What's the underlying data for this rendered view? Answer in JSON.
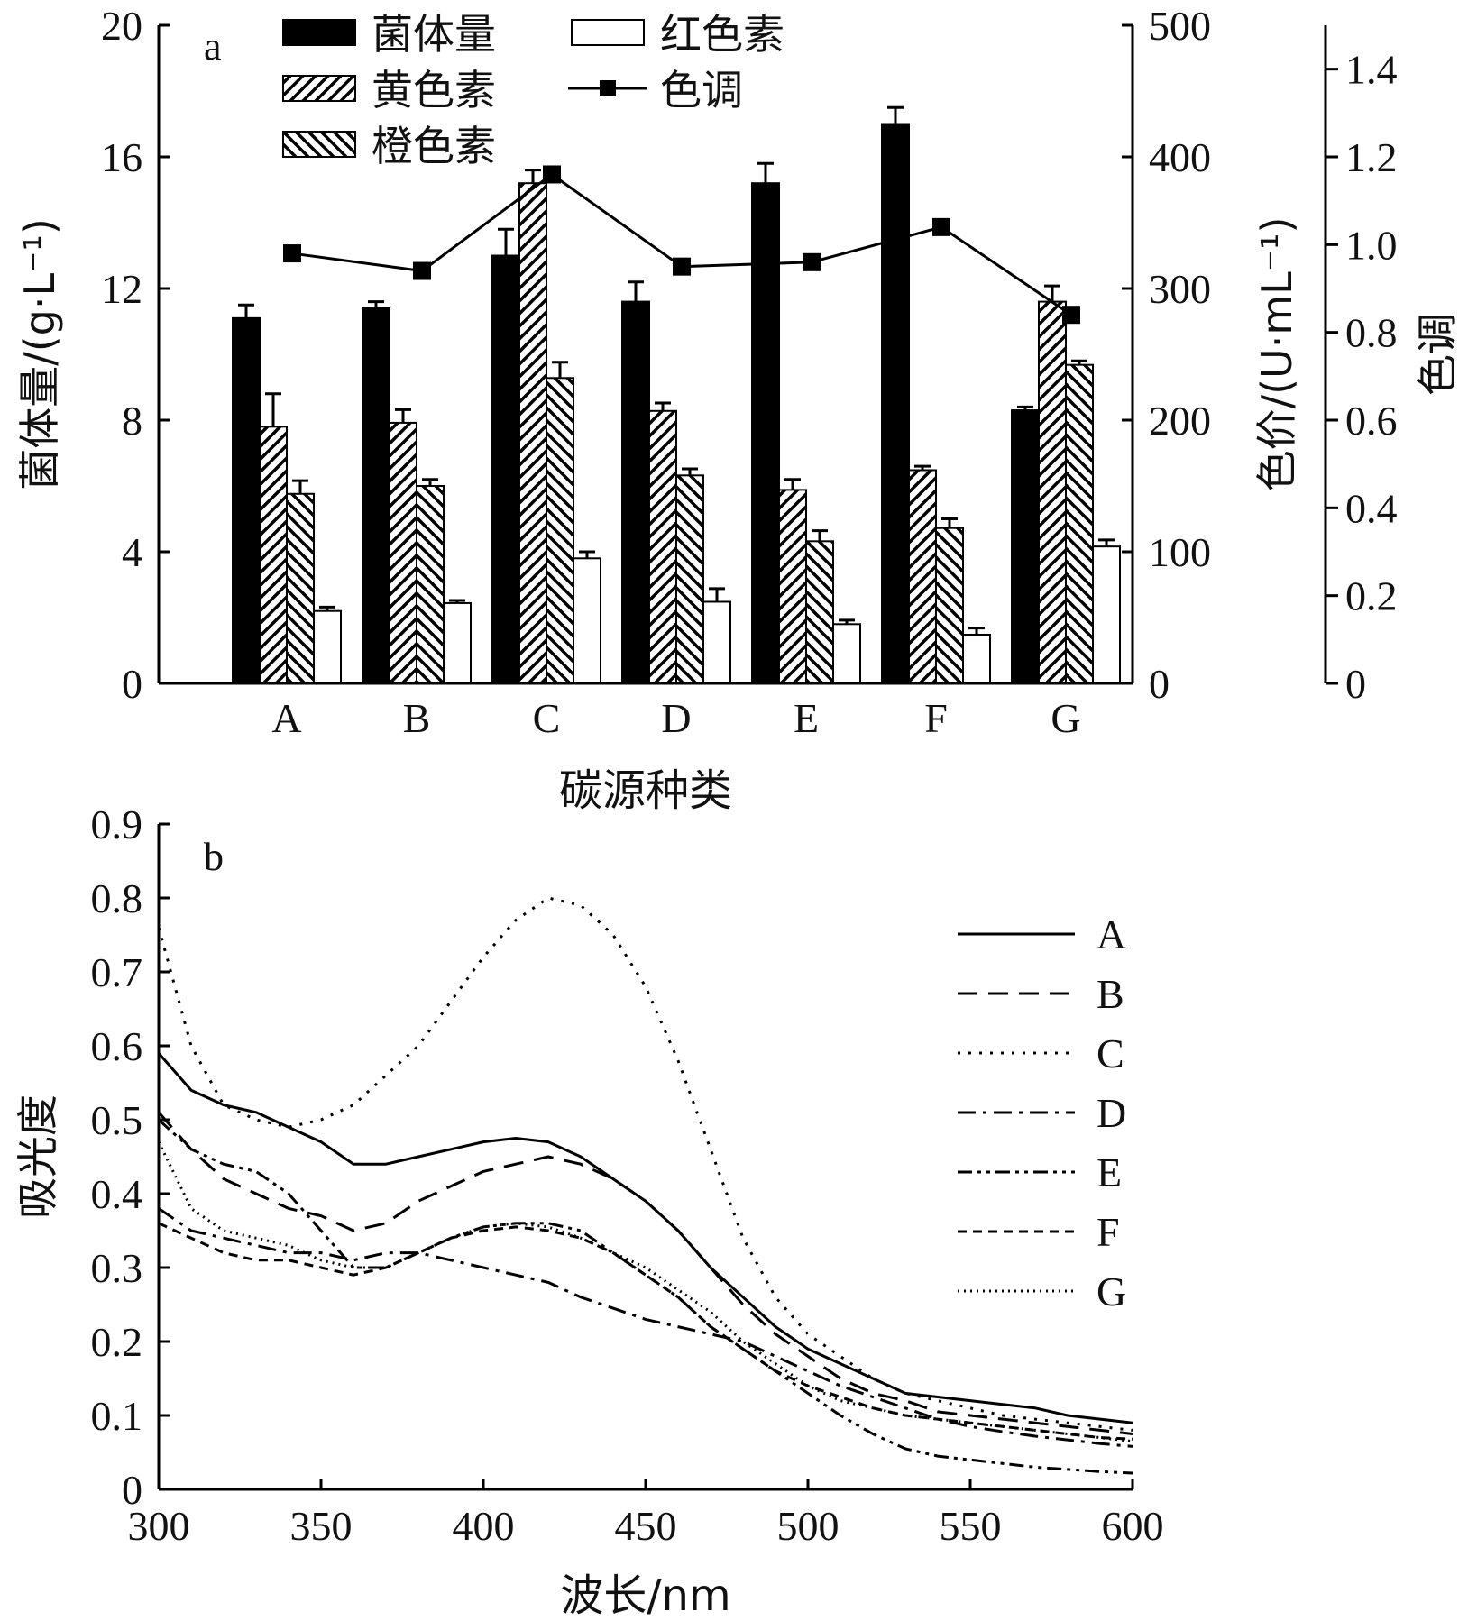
{
  "chart_data": [
    {
      "type": "bar",
      "panel_label": "a",
      "categories": [
        "A",
        "B",
        "C",
        "D",
        "E",
        "F",
        "G"
      ],
      "xlabel": "碳源种类",
      "ylabel_left": "菌体量/(g·L⁻¹)",
      "ylabel_right_1": "色价/(U·mL⁻¹)",
      "ylabel_right_2": "色调",
      "ylim_left": [
        0,
        20
      ],
      "ylim_right_1": [
        0,
        500
      ],
      "ylim_right_2": [
        0,
        1.5
      ],
      "yticks_left": [
        "0",
        "4",
        "8",
        "12",
        "16",
        "20"
      ],
      "yticks_right_1": [
        "0",
        "100",
        "200",
        "300",
        "400",
        "500"
      ],
      "yticks_right_2": [
        "0",
        "0.2",
        "0.4",
        "0.6",
        "0.8",
        "1.0",
        "1.2",
        "1.4"
      ],
      "legend": {
        "placement": "top",
        "entries": [
          "菌体量",
          "黄色素",
          "橙色素",
          "红色素",
          "色调"
        ]
      },
      "series": [
        {
          "name": "菌体量",
          "axis": "left",
          "style": "solid-black-bar",
          "values": [
            11.1,
            11.4,
            13.0,
            11.6,
            15.2,
            17.0,
            8.3
          ],
          "errors": [
            0.4,
            0.2,
            0.8,
            0.6,
            0.6,
            0.5,
            0.1
          ]
        },
        {
          "name": "黄色素",
          "axis": "right_1",
          "style": "hatch-forward-bar",
          "values": [
            195,
            198,
            380,
            207,
            147,
            162,
            290
          ],
          "errors": [
            25,
            10,
            10,
            6,
            8,
            3,
            12
          ]
        },
        {
          "name": "橙色素",
          "axis": "right_1",
          "style": "hatch-backward-bar",
          "values": [
            144,
            150,
            232,
            158,
            108,
            118,
            242
          ],
          "errors": [
            10,
            5,
            12,
            5,
            8,
            7,
            3
          ]
        },
        {
          "name": "红色素",
          "axis": "right_1",
          "style": "white-bar",
          "values": [
            55,
            61,
            95,
            62,
            45,
            37,
            104
          ],
          "errors": [
            3,
            2,
            5,
            10,
            3,
            5,
            5
          ]
        },
        {
          "name": "色调",
          "axis": "right_2",
          "style": "line-square-marker",
          "values": [
            0.98,
            0.94,
            1.16,
            0.95,
            0.96,
            1.04,
            0.84
          ]
        }
      ]
    },
    {
      "type": "line",
      "panel_label": "b",
      "xlabel": "波长/nm",
      "ylabel": "吸光度",
      "xlim": [
        300,
        600
      ],
      "ylim": [
        0,
        0.9
      ],
      "xticks": [
        "300",
        "350",
        "400",
        "450",
        "500",
        "550",
        "600"
      ],
      "yticks": [
        "0",
        "0.1",
        "0.2",
        "0.3",
        "0.4",
        "0.5",
        "0.6",
        "0.7",
        "0.8",
        "0.9"
      ],
      "legend": {
        "placement": "right",
        "entries": [
          "A",
          "B",
          "C",
          "D",
          "E",
          "F",
          "G"
        ]
      },
      "x": [
        300,
        310,
        320,
        330,
        340,
        350,
        360,
        370,
        380,
        390,
        400,
        410,
        420,
        430,
        440,
        450,
        460,
        470,
        480,
        490,
        500,
        510,
        520,
        530,
        540,
        550,
        560,
        570,
        580,
        590,
        600
      ],
      "series": [
        {
          "name": "A",
          "dash": "solid",
          "values": [
            0.59,
            0.54,
            0.52,
            0.51,
            0.49,
            0.47,
            0.44,
            0.44,
            0.45,
            0.46,
            0.47,
            0.475,
            0.47,
            0.45,
            0.42,
            0.39,
            0.35,
            0.3,
            0.26,
            0.22,
            0.19,
            0.17,
            0.15,
            0.13,
            0.125,
            0.12,
            0.115,
            0.11,
            0.1,
            0.095,
            0.09
          ]
        },
        {
          "name": "B",
          "dash": "long-dash",
          "values": [
            0.51,
            0.46,
            0.42,
            0.4,
            0.38,
            0.37,
            0.35,
            0.36,
            0.39,
            0.41,
            0.43,
            0.44,
            0.45,
            0.44,
            0.42,
            0.39,
            0.35,
            0.3,
            0.25,
            0.21,
            0.18,
            0.15,
            0.13,
            0.12,
            0.105,
            0.1,
            0.095,
            0.09,
            0.085,
            0.08,
            0.075
          ]
        },
        {
          "name": "C",
          "dash": "dot",
          "values": [
            0.76,
            0.6,
            0.52,
            0.5,
            0.49,
            0.5,
            0.52,
            0.56,
            0.6,
            0.66,
            0.72,
            0.77,
            0.8,
            0.79,
            0.75,
            0.68,
            0.58,
            0.46,
            0.34,
            0.26,
            0.21,
            0.18,
            0.15,
            0.13,
            0.12,
            0.11,
            0.1,
            0.095,
            0.09,
            0.085,
            0.08
          ]
        },
        {
          "name": "D",
          "dash": "dash-dot",
          "values": [
            0.38,
            0.35,
            0.34,
            0.33,
            0.32,
            0.32,
            0.31,
            0.32,
            0.32,
            0.31,
            0.3,
            0.29,
            0.28,
            0.26,
            0.245,
            0.23,
            0.22,
            0.21,
            0.2,
            0.18,
            0.16,
            0.14,
            0.125,
            0.11,
            0.095,
            0.085,
            0.078,
            0.072,
            0.067,
            0.062,
            0.058
          ]
        },
        {
          "name": "E",
          "dash": "dash-dot-dot",
          "values": [
            0.5,
            0.46,
            0.44,
            0.43,
            0.4,
            0.35,
            0.3,
            0.3,
            0.32,
            0.34,
            0.355,
            0.36,
            0.36,
            0.35,
            0.32,
            0.29,
            0.26,
            0.22,
            0.19,
            0.16,
            0.13,
            0.1,
            0.075,
            0.055,
            0.045,
            0.04,
            0.035,
            0.03,
            0.027,
            0.024,
            0.022
          ]
        },
        {
          "name": "F",
          "dash": "short-dash",
          "values": [
            0.36,
            0.34,
            0.32,
            0.31,
            0.31,
            0.3,
            0.29,
            0.3,
            0.32,
            0.34,
            0.35,
            0.355,
            0.35,
            0.34,
            0.32,
            0.29,
            0.26,
            0.22,
            0.19,
            0.16,
            0.14,
            0.125,
            0.11,
            0.1,
            0.095,
            0.09,
            0.085,
            0.08,
            0.075,
            0.07,
            0.068
          ]
        },
        {
          "name": "G",
          "dash": "fine-dot",
          "values": [
            0.47,
            0.38,
            0.35,
            0.34,
            0.33,
            0.31,
            0.3,
            0.3,
            0.32,
            0.34,
            0.355,
            0.36,
            0.355,
            0.34,
            0.32,
            0.3,
            0.27,
            0.24,
            0.2,
            0.17,
            0.14,
            0.12,
            0.11,
            0.1,
            0.095,
            0.09,
            0.085,
            0.08,
            0.075,
            0.07,
            0.065
          ]
        }
      ]
    }
  ]
}
